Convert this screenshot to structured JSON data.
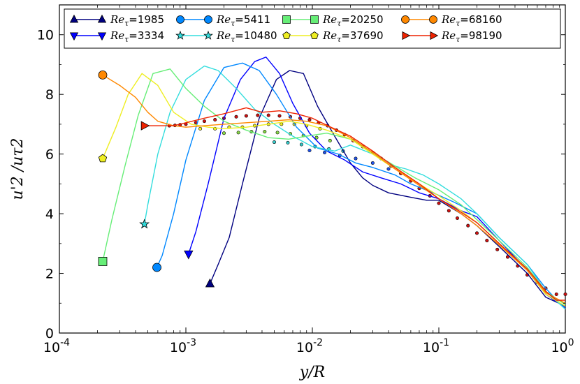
{
  "chart_data": {
    "type": "line",
    "xlabel": "y/R",
    "ylabel": "u'2 /uτ2",
    "xscale": "log",
    "xlim": [
      0.0001,
      1
    ],
    "ylim": [
      0,
      11
    ],
    "x_ticks": [
      {
        "value": 0.0001,
        "base": "10",
        "exp": "-4"
      },
      {
        "value": 0.001,
        "base": "10",
        "exp": "-3"
      },
      {
        "value": 0.01,
        "base": "10",
        "exp": "-2"
      },
      {
        "value": 0.1,
        "base": "10",
        "exp": "-1"
      },
      {
        "value": 1,
        "base": "10",
        "exp": "0"
      }
    ],
    "y_ticks": [
      "0",
      "2",
      "4",
      "6",
      "8",
      "10"
    ],
    "legend_position": "top",
    "legend_prefix": "Re",
    "legend_sub": "τ",
    "series": [
      {
        "name": "=1985",
        "color": "#000080",
        "marker": "triangle-up",
        "open": false,
        "x": [
          0.00155,
          0.0018,
          0.0022,
          0.0028,
          0.0038,
          0.0052,
          0.0066,
          0.0085,
          0.011,
          0.015,
          0.02,
          0.025,
          0.03,
          0.04,
          0.06,
          0.08,
          0.1,
          0.15,
          0.2,
          0.3,
          0.5,
          0.7,
          1.0
        ],
        "y": [
          1.65,
          2.3,
          3.2,
          5.0,
          7.2,
          8.5,
          8.8,
          8.7,
          7.6,
          6.6,
          5.7,
          5.2,
          4.95,
          4.7,
          4.55,
          4.45,
          4.45,
          4.0,
          3.6,
          2.9,
          2.0,
          1.2,
          0.9
        ]
      },
      {
        "name": "=3334",
        "color": "#0000ff",
        "marker": "triangle-down",
        "open": false,
        "x": [
          0.00105,
          0.0012,
          0.0015,
          0.002,
          0.0027,
          0.0035,
          0.0043,
          0.0055,
          0.007,
          0.0095,
          0.013,
          0.018,
          0.025,
          0.035,
          0.05,
          0.07,
          0.1,
          0.15,
          0.2,
          0.3,
          0.5,
          0.7,
          1.0
        ],
        "y": [
          2.65,
          3.4,
          5.0,
          7.2,
          8.5,
          9.1,
          9.25,
          8.7,
          7.7,
          6.7,
          6.1,
          5.8,
          5.4,
          5.2,
          5.0,
          4.7,
          4.5,
          4.1,
          3.9,
          3.1,
          2.1,
          1.3,
          0.85
        ]
      },
      {
        "name": "=5411",
        "color": "#0088ff",
        "marker": "circle",
        "open": false,
        "x": [
          0.00059,
          0.00065,
          0.0008,
          0.001,
          0.0014,
          0.002,
          0.0028,
          0.0038,
          0.0052,
          0.0075,
          0.011,
          0.016,
          0.022,
          0.03,
          0.045,
          0.06,
          0.09,
          0.13,
          0.2,
          0.3,
          0.5,
          0.7,
          1.0
        ],
        "y": [
          2.2,
          2.6,
          4.0,
          5.8,
          7.8,
          8.9,
          9.05,
          8.8,
          8.0,
          6.9,
          6.2,
          6.0,
          5.7,
          5.55,
          5.3,
          5.0,
          4.7,
          4.4,
          4.0,
          3.2,
          2.3,
          1.5,
          0.8
        ]
      },
      {
        "name": "=10480",
        "color": "#33dddd",
        "marker": "star",
        "open": false,
        "x": [
          0.00047,
          0.0005,
          0.0006,
          0.00075,
          0.001,
          0.0014,
          0.0018,
          0.0025,
          0.0035,
          0.005,
          0.007,
          0.01,
          0.015,
          0.02,
          0.03,
          0.04,
          0.055,
          0.075,
          0.1,
          0.15,
          0.2,
          0.3,
          0.5,
          0.7,
          1.0
        ],
        "y": [
          3.65,
          4.3,
          6.0,
          7.4,
          8.5,
          8.95,
          8.8,
          8.2,
          7.5,
          7.0,
          6.6,
          6.25,
          6.1,
          6.3,
          6.0,
          5.65,
          5.5,
          5.3,
          5.0,
          4.5,
          4.0,
          3.2,
          2.3,
          1.4,
          0.8
        ]
      },
      {
        "name": "=20250",
        "color": "#66ee77",
        "marker": "square",
        "open": false,
        "x": [
          0.00022,
          0.00026,
          0.00033,
          0.00042,
          0.00055,
          0.00075,
          0.001,
          0.0014,
          0.002,
          0.003,
          0.0045,
          0.0065,
          0.009,
          0.013,
          0.02,
          0.03,
          0.045,
          0.065,
          0.1,
          0.15,
          0.2,
          0.3,
          0.5,
          0.7,
          1.0
        ],
        "y": [
          2.4,
          3.8,
          5.6,
          7.3,
          8.7,
          8.85,
          8.2,
          7.6,
          7.1,
          6.8,
          6.55,
          6.5,
          6.6,
          6.7,
          6.5,
          6.05,
          5.6,
          5.2,
          4.8,
          4.3,
          3.8,
          3.1,
          2.2,
          1.4,
          0.95
        ]
      },
      {
        "name": "=37690",
        "color": "#eeee22",
        "marker": "pentagon",
        "open": false,
        "x": [
          0.00022,
          0.00028,
          0.00035,
          0.00045,
          0.0006,
          0.0008,
          0.0011,
          0.0015,
          0.002,
          0.003,
          0.0045,
          0.0065,
          0.009,
          0.013,
          0.02,
          0.03,
          0.045,
          0.07,
          0.1,
          0.15,
          0.2,
          0.3,
          0.5,
          0.7,
          1.0
        ],
        "y": [
          5.85,
          6.9,
          8.0,
          8.7,
          8.3,
          7.4,
          7.0,
          6.9,
          6.85,
          6.9,
          7.0,
          7.1,
          7.0,
          6.8,
          6.5,
          6.0,
          5.5,
          5.0,
          4.6,
          4.1,
          3.7,
          3.0,
          2.1,
          1.3,
          0.9
        ]
      },
      {
        "name": "=68160",
        "color": "#ff8800",
        "marker": "circle",
        "open": false,
        "x": [
          0.00022,
          0.0003,
          0.0004,
          0.0005,
          0.0006,
          0.0008,
          0.001,
          0.0014,
          0.002,
          0.003,
          0.0045,
          0.0065,
          0.009,
          0.013,
          0.02,
          0.03,
          0.045,
          0.07,
          0.1,
          0.15,
          0.2,
          0.3,
          0.5,
          0.7,
          1.0
        ],
        "y": [
          8.65,
          8.3,
          7.9,
          7.4,
          7.1,
          6.95,
          6.9,
          6.95,
          7.0,
          7.05,
          7.1,
          7.15,
          7.1,
          6.95,
          6.55,
          6.05,
          5.5,
          4.95,
          4.5,
          4.0,
          3.6,
          2.95,
          2.1,
          1.35,
          1.0
        ]
      },
      {
        "name": "=98190",
        "color": "#ee2200",
        "marker": "triangle-right",
        "open": false,
        "x": [
          0.00047,
          0.0006,
          0.0008,
          0.001,
          0.0014,
          0.002,
          0.003,
          0.004,
          0.0055,
          0.0075,
          0.01,
          0.014,
          0.02,
          0.03,
          0.045,
          0.07,
          0.1,
          0.15,
          0.2,
          0.3,
          0.5,
          0.7,
          0.85,
          1.0
        ],
        "y": [
          6.95,
          6.95,
          6.95,
          7.05,
          7.2,
          7.35,
          7.55,
          7.4,
          7.45,
          7.35,
          7.2,
          6.9,
          6.6,
          6.1,
          5.55,
          5.0,
          4.5,
          4.05,
          3.7,
          3.0,
          2.15,
          1.4,
          1.1,
          1.1
        ]
      }
    ],
    "reference_points": [
      {
        "color": "#d01010",
        "x": [
          0.00074,
          0.00082,
          0.0009,
          0.001,
          0.0012,
          0.0014,
          0.0017,
          0.002,
          0.0025,
          0.003,
          0.0037,
          0.0045,
          0.0055,
          0.0067,
          0.008,
          0.0095,
          0.0112,
          0.0132,
          0.0155,
          0.018,
          0.021,
          0.025,
          0.03,
          0.035,
          0.042,
          0.05,
          0.06,
          0.07,
          0.085,
          0.1,
          0.12,
          0.14,
          0.17,
          0.2,
          0.24,
          0.29,
          0.35,
          0.42,
          0.5,
          0.6,
          0.7,
          0.85,
          1.0
        ],
        "y": [
          6.95,
          6.96,
          6.98,
          7.0,
          7.05,
          7.1,
          7.15,
          7.2,
          7.25,
          7.28,
          7.3,
          7.3,
          7.28,
          7.25,
          7.2,
          7.15,
          7.05,
          6.95,
          6.8,
          6.65,
          6.45,
          6.25,
          6.05,
          5.85,
          5.6,
          5.35,
          5.1,
          4.85,
          4.6,
          4.35,
          4.1,
          3.85,
          3.6,
          3.35,
          3.1,
          2.8,
          2.55,
          2.25,
          1.95,
          1.7,
          1.5,
          1.3,
          1.3
        ]
      },
      {
        "color": "#eeee22",
        "x": [
          0.0013,
          0.0017,
          0.0022,
          0.0028,
          0.0035,
          0.0045,
          0.0057,
          0.0072,
          0.009,
          0.0115
        ],
        "y": [
          6.85,
          6.85,
          6.9,
          6.9,
          6.95,
          7.0,
          7.0,
          7.0,
          6.95,
          6.85
        ]
      },
      {
        "color": "#88dd44",
        "x": [
          0.002,
          0.0026,
          0.0033,
          0.0042,
          0.0053,
          0.0067,
          0.0085,
          0.0108,
          0.0138
        ],
        "y": [
          6.7,
          6.72,
          6.75,
          6.75,
          6.72,
          6.68,
          6.62,
          6.55,
          6.45
        ]
      },
      {
        "color": "#33cccc",
        "x": [
          0.005,
          0.0064,
          0.0082,
          0.0105,
          0.0135,
          0.0175
        ],
        "y": [
          6.4,
          6.38,
          6.32,
          6.25,
          6.17,
          6.1
        ]
      },
      {
        "color": "#2255ee",
        "x": [
          0.0095,
          0.0125,
          0.0165,
          0.022,
          0.03,
          0.04
        ],
        "y": [
          6.12,
          6.05,
          5.95,
          5.85,
          5.7,
          5.5
        ]
      }
    ]
  }
}
